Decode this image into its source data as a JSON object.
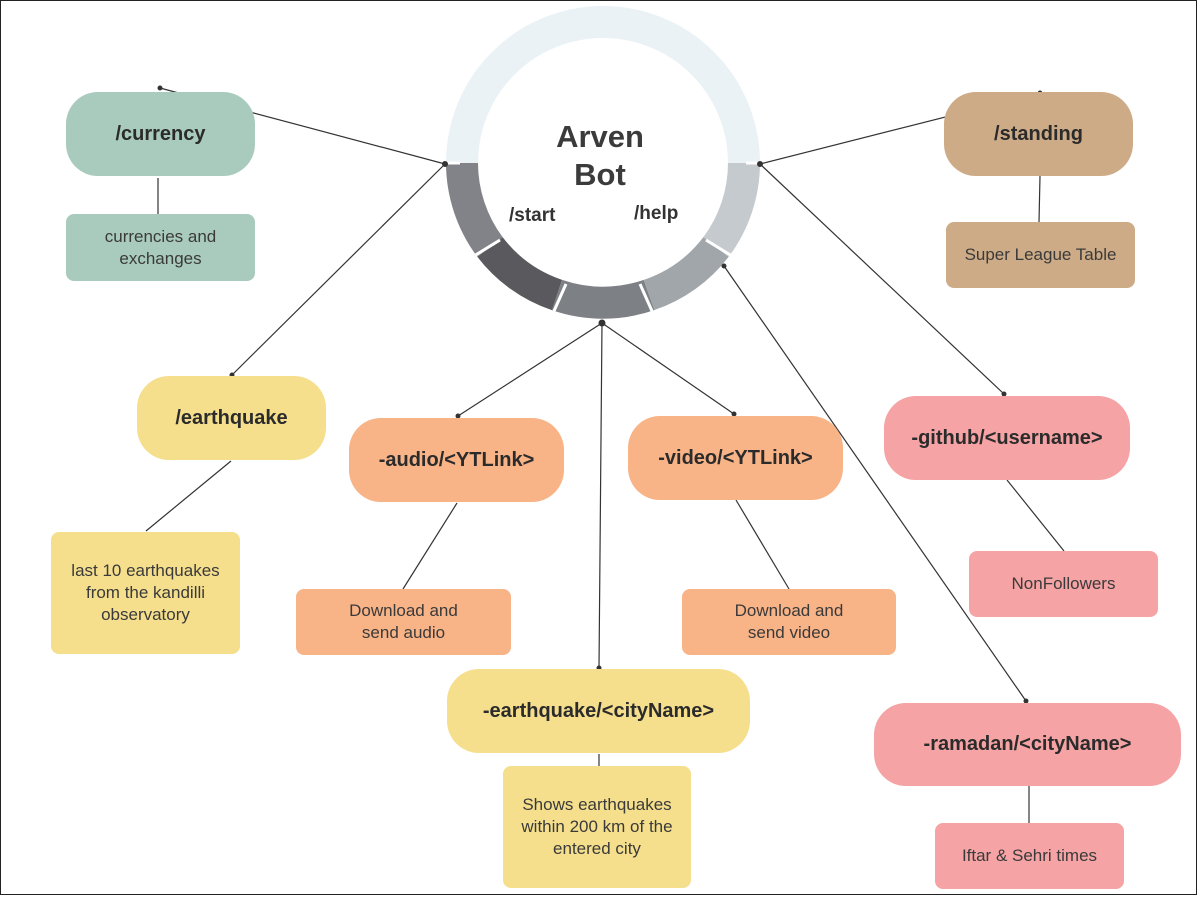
{
  "hub": {
    "title": "Arven Bot",
    "start": "/start",
    "help": "/help"
  },
  "nodes": {
    "currency": {
      "label": "/currency",
      "description": "currencies and exchanges"
    },
    "standing": {
      "label": "/standing",
      "description": "Super League Table"
    },
    "earthquake": {
      "label": "/earthquake",
      "description": "last 10 earthquakes from the kandilli observatory"
    },
    "audio": {
      "label": "-audio/<YTLink>",
      "description": "Download and send audio"
    },
    "video": {
      "label": "-video/<YTLink>",
      "description": "Download and send video"
    },
    "github": {
      "label": "-github/<username>",
      "description": "NonFollowers"
    },
    "earthquake_city": {
      "label": "-earthquake/<cityName>",
      "description": "Shows earthquakes within 200 km of the entered city"
    },
    "ramadan": {
      "label": "-ramadan/<cityName>",
      "description": "Iftar & Sehri times"
    }
  },
  "colors": {
    "green": "#a9cbbd",
    "tan": "#ceab87",
    "yellow": "#f5df8d",
    "orange": "#f8b387",
    "pink": "#f5a3a4",
    "ring_light": "#eaf2f6",
    "ring_dark": "#5a5a5e"
  }
}
